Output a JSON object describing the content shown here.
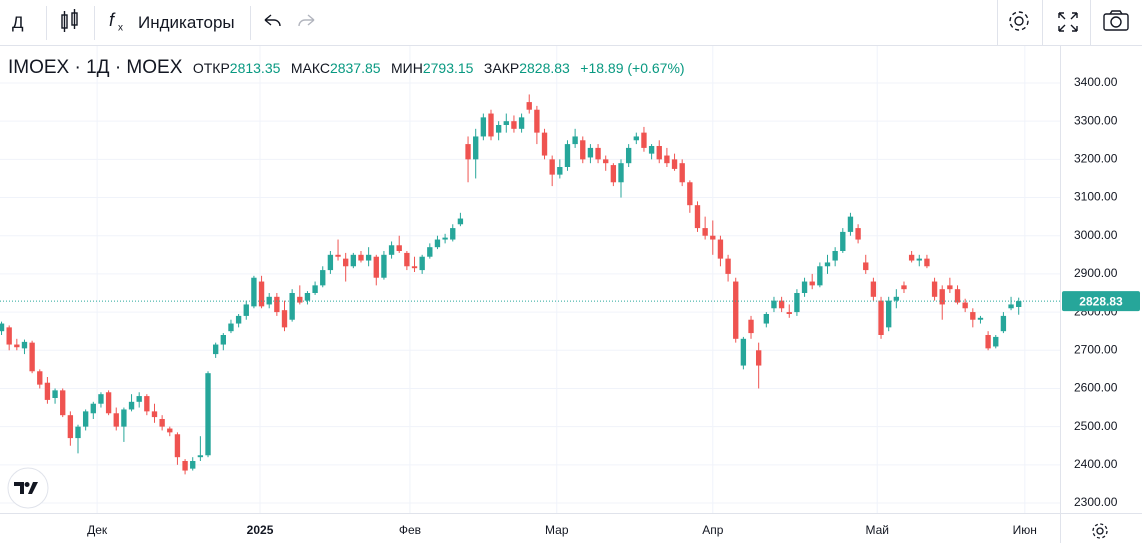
{
  "toolbar": {
    "interval": "Д",
    "indicators": "Индикаторы"
  },
  "chart_data": {
    "type": "candlestick",
    "title": "IMOEX · 1Д · MOEX",
    "ohlc_labels": {
      "open": "ОТКР",
      "high": "МАКС",
      "low": "МИН",
      "close": "ЗАКР"
    },
    "change_label": "+18.89 (+0.67%)",
    "up_color": "#26a69a",
    "down_color": "#ef5350",
    "grid": true,
    "ylim": [
      2273.8,
      3496.9
    ],
    "yticks": [
      {
        "value": 2300,
        "label": "2300.00"
      },
      {
        "value": 2400,
        "label": "2400.00"
      },
      {
        "value": 2500,
        "label": "2500.00"
      },
      {
        "value": 2600,
        "label": "2600.00"
      },
      {
        "value": 2700,
        "label": "2700.00"
      },
      {
        "value": 2800,
        "label": "2800.00"
      },
      {
        "value": 2900,
        "label": "2900.00"
      },
      {
        "value": 3000,
        "label": "3000.00"
      },
      {
        "value": 3100,
        "label": "3100.00"
      },
      {
        "value": 3200,
        "label": "3200.00"
      },
      {
        "value": 3300,
        "label": "3300.00"
      },
      {
        "value": 3400,
        "label": "3400.00"
      }
    ],
    "xlim": [
      -0.2,
      138.4
    ],
    "xticks": [
      {
        "value": 12.5,
        "label": "Дек"
      },
      {
        "value": 33.8,
        "label": "2025"
      },
      {
        "value": 53.4,
        "label": "Фев"
      },
      {
        "value": 72.6,
        "label": "Мар"
      },
      {
        "value": 93.0,
        "label": "Апр"
      },
      {
        "value": 114.5,
        "label": "Май"
      },
      {
        "value": 133.8,
        "label": "Июн"
      }
    ],
    "candles": [
      {
        "open": 2750,
        "high": 2775,
        "low": 2740,
        "close": 2770
      },
      {
        "open": 2760,
        "high": 2765,
        "low": 2700,
        "close": 2715
      },
      {
        "open": 2715,
        "high": 2730,
        "low": 2700,
        "close": 2708
      },
      {
        "open": 2705,
        "high": 2728,
        "low": 2690,
        "close": 2722
      },
      {
        "open": 2720,
        "high": 2725,
        "low": 2640,
        "close": 2645
      },
      {
        "open": 2645,
        "high": 2650,
        "low": 2600,
        "close": 2610
      },
      {
        "open": 2615,
        "high": 2630,
        "low": 2560,
        "close": 2570
      },
      {
        "open": 2575,
        "high": 2600,
        "low": 2560,
        "close": 2595
      },
      {
        "open": 2595,
        "high": 2600,
        "low": 2525,
        "close": 2530
      },
      {
        "open": 2530,
        "high": 2540,
        "low": 2450,
        "close": 2470
      },
      {
        "open": 2470,
        "high": 2505,
        "low": 2430,
        "close": 2500
      },
      {
        "open": 2500,
        "high": 2545,
        "low": 2490,
        "close": 2540
      },
      {
        "open": 2535,
        "high": 2565,
        "low": 2520,
        "close": 2560
      },
      {
        "open": 2560,
        "high": 2590,
        "low": 2550,
        "close": 2585
      },
      {
        "open": 2590,
        "high": 2595,
        "low": 2530,
        "close": 2535
      },
      {
        "open": 2535,
        "high": 2550,
        "low": 2490,
        "close": 2500
      },
      {
        "open": 2500,
        "high": 2550,
        "low": 2460,
        "close": 2545
      },
      {
        "open": 2545,
        "high": 2585,
        "low": 2540,
        "close": 2565
      },
      {
        "open": 2565,
        "high": 2590,
        "low": 2550,
        "close": 2580
      },
      {
        "open": 2580,
        "high": 2585,
        "low": 2530,
        "close": 2540
      },
      {
        "open": 2540,
        "high": 2560,
        "low": 2510,
        "close": 2525
      },
      {
        "open": 2520,
        "high": 2530,
        "low": 2490,
        "close": 2500
      },
      {
        "open": 2495,
        "high": 2500,
        "low": 2475,
        "close": 2485
      },
      {
        "open": 2480,
        "high": 2485,
        "low": 2400,
        "close": 2420
      },
      {
        "open": 2410,
        "high": 2415,
        "low": 2375,
        "close": 2385
      },
      {
        "open": 2390,
        "high": 2420,
        "low": 2385,
        "close": 2410
      },
      {
        "open": 2420,
        "high": 2475,
        "low": 2410,
        "close": 2425
      },
      {
        "open": 2425,
        "high": 2645,
        "low": 2420,
        "close": 2640
      },
      {
        "open": 2690,
        "high": 2720,
        "low": 2680,
        "close": 2715
      },
      {
        "open": 2715,
        "high": 2745,
        "low": 2700,
        "close": 2740
      },
      {
        "open": 2750,
        "high": 2780,
        "low": 2745,
        "close": 2770
      },
      {
        "open": 2770,
        "high": 2795,
        "low": 2760,
        "close": 2790
      },
      {
        "open": 2790,
        "high": 2830,
        "low": 2780,
        "close": 2820
      },
      {
        "open": 2815,
        "high": 2895,
        "low": 2810,
        "close": 2890
      },
      {
        "open": 2880,
        "high": 2895,
        "low": 2810,
        "close": 2815
      },
      {
        "open": 2820,
        "high": 2850,
        "low": 2810,
        "close": 2840
      },
      {
        "open": 2840,
        "high": 2850,
        "low": 2790,
        "close": 2800
      },
      {
        "open": 2805,
        "high": 2830,
        "low": 2750,
        "close": 2760
      },
      {
        "open": 2780,
        "high": 2860,
        "low": 2775,
        "close": 2850
      },
      {
        "open": 2840,
        "high": 2870,
        "low": 2820,
        "close": 2825
      },
      {
        "open": 2830,
        "high": 2855,
        "low": 2820,
        "close": 2850
      },
      {
        "open": 2850,
        "high": 2880,
        "low": 2845,
        "close": 2870
      },
      {
        "open": 2870,
        "high": 2920,
        "low": 2865,
        "close": 2910
      },
      {
        "open": 2910,
        "high": 2960,
        "low": 2900,
        "close": 2950
      },
      {
        "open": 2950,
        "high": 2990,
        "low": 2935,
        "close": 2945
      },
      {
        "open": 2940,
        "high": 2955,
        "low": 2880,
        "close": 2920
      },
      {
        "open": 2920,
        "high": 2955,
        "low": 2915,
        "close": 2950
      },
      {
        "open": 2950,
        "high": 2960,
        "low": 2930,
        "close": 2935
      },
      {
        "open": 2935,
        "high": 2970,
        "low": 2920,
        "close": 2950
      },
      {
        "open": 2945,
        "high": 2950,
        "low": 2870,
        "close": 2890
      },
      {
        "open": 2890,
        "high": 2960,
        "low": 2885,
        "close": 2950
      },
      {
        "open": 2950,
        "high": 2985,
        "low": 2940,
        "close": 2975
      },
      {
        "open": 2975,
        "high": 3000,
        "low": 2955,
        "close": 2960
      },
      {
        "open": 2955,
        "high": 2960,
        "low": 2910,
        "close": 2920
      },
      {
        "open": 2920,
        "high": 2945,
        "low": 2905,
        "close": 2915
      },
      {
        "open": 2910,
        "high": 2950,
        "low": 2900,
        "close": 2945
      },
      {
        "open": 2945,
        "high": 2980,
        "low": 2940,
        "close": 2970
      },
      {
        "open": 2970,
        "high": 3000,
        "low": 2965,
        "close": 2990
      },
      {
        "open": 2990,
        "high": 3005,
        "low": 2980,
        "close": 2995
      },
      {
        "open": 2990,
        "high": 3030,
        "low": 2985,
        "close": 3020
      },
      {
        "open": 3030,
        "high": 3060,
        "low": 3025,
        "close": 3045
      },
      {
        "open": 3240,
        "high": 3260,
        "low": 3140,
        "close": 3200
      },
      {
        "open": 3200,
        "high": 3280,
        "low": 3150,
        "close": 3260
      },
      {
        "open": 3260,
        "high": 3320,
        "low": 3250,
        "close": 3310
      },
      {
        "open": 3320,
        "high": 3330,
        "low": 3250,
        "close": 3260
      },
      {
        "open": 3270,
        "high": 3300,
        "low": 3250,
        "close": 3290
      },
      {
        "open": 3290,
        "high": 3320,
        "low": 3270,
        "close": 3300
      },
      {
        "open": 3300,
        "high": 3315,
        "low": 3270,
        "close": 3280
      },
      {
        "open": 3280,
        "high": 3320,
        "low": 3270,
        "close": 3310
      },
      {
        "open": 3350,
        "high": 3370,
        "low": 3320,
        "close": 3330
      },
      {
        "open": 3330,
        "high": 3340,
        "low": 3240,
        "close": 3270
      },
      {
        "open": 3270,
        "high": 3280,
        "low": 3200,
        "close": 3210
      },
      {
        "open": 3200,
        "high": 3210,
        "low": 3130,
        "close": 3160
      },
      {
        "open": 3160,
        "high": 3200,
        "low": 3150,
        "close": 3180
      },
      {
        "open": 3180,
        "high": 3250,
        "low": 3170,
        "close": 3240
      },
      {
        "open": 3240,
        "high": 3280,
        "low": 3230,
        "close": 3260
      },
      {
        "open": 3250,
        "high": 3260,
        "low": 3190,
        "close": 3200
      },
      {
        "open": 3205,
        "high": 3240,
        "low": 3190,
        "close": 3230
      },
      {
        "open": 3230,
        "high": 3240,
        "low": 3190,
        "close": 3200
      },
      {
        "open": 3200,
        "high": 3210,
        "low": 3170,
        "close": 3190
      },
      {
        "open": 3185,
        "high": 3190,
        "low": 3130,
        "close": 3140
      },
      {
        "open": 3140,
        "high": 3200,
        "low": 3100,
        "close": 3190
      },
      {
        "open": 3190,
        "high": 3240,
        "low": 3180,
        "close": 3230
      },
      {
        "open": 3250,
        "high": 3270,
        "low": 3240,
        "close": 3260
      },
      {
        "open": 3270,
        "high": 3285,
        "low": 3220,
        "close": 3230
      },
      {
        "open": 3215,
        "high": 3240,
        "low": 3200,
        "close": 3235
      },
      {
        "open": 3235,
        "high": 3250,
        "low": 3190,
        "close": 3200
      },
      {
        "open": 3210,
        "high": 3230,
        "low": 3180,
        "close": 3190
      },
      {
        "open": 3200,
        "high": 3215,
        "low": 3170,
        "close": 3175
      },
      {
        "open": 3190,
        "high": 3200,
        "low": 3130,
        "close": 3140
      },
      {
        "open": 3140,
        "high": 3145,
        "low": 3060,
        "close": 3080
      },
      {
        "open": 3080,
        "high": 3090,
        "low": 3010,
        "close": 3020
      },
      {
        "open": 3020,
        "high": 3050,
        "low": 2990,
        "close": 3000
      },
      {
        "open": 3000,
        "high": 3040,
        "low": 2950,
        "close": 2990
      },
      {
        "open": 2990,
        "high": 3000,
        "low": 2920,
        "close": 2940
      },
      {
        "open": 2940,
        "high": 2950,
        "low": 2880,
        "close": 2900
      },
      {
        "open": 2880,
        "high": 2890,
        "low": 2720,
        "close": 2730
      },
      {
        "open": 2660,
        "high": 2735,
        "low": 2650,
        "close": 2730
      },
      {
        "open": 2780,
        "high": 2790,
        "low": 2730,
        "close": 2745
      },
      {
        "open": 2700,
        "high": 2720,
        "low": 2600,
        "close": 2660
      },
      {
        "open": 2770,
        "high": 2800,
        "low": 2760,
        "close": 2795
      },
      {
        "open": 2810,
        "high": 2840,
        "low": 2800,
        "close": 2830
      },
      {
        "open": 2830,
        "high": 2840,
        "low": 2800,
        "close": 2810
      },
      {
        "open": 2800,
        "high": 2820,
        "low": 2785,
        "close": 2795
      },
      {
        "open": 2800,
        "high": 2860,
        "low": 2790,
        "close": 2850
      },
      {
        "open": 2850,
        "high": 2890,
        "low": 2840,
        "close": 2880
      },
      {
        "open": 2880,
        "high": 2900,
        "low": 2860,
        "close": 2870
      },
      {
        "open": 2870,
        "high": 2930,
        "low": 2865,
        "close": 2920
      },
      {
        "open": 2920,
        "high": 2950,
        "low": 2900,
        "close": 2930
      },
      {
        "open": 2935,
        "high": 2970,
        "low": 2920,
        "close": 2960
      },
      {
        "open": 2960,
        "high": 3020,
        "low": 2955,
        "close": 3010
      },
      {
        "open": 3010,
        "high": 3060,
        "low": 3000,
        "close": 3050
      },
      {
        "open": 3020,
        "high": 3030,
        "low": 2980,
        "close": 2990
      },
      {
        "open": 2930,
        "high": 2950,
        "low": 2900,
        "close": 2910
      },
      {
        "open": 2880,
        "high": 2890,
        "low": 2830,
        "close": 2840
      },
      {
        "open": 2830,
        "high": 2840,
        "low": 2730,
        "close": 2740
      },
      {
        "open": 2760,
        "high": 2840,
        "low": 2750,
        "close": 2830
      },
      {
        "open": 2830,
        "high": 2860,
        "low": 2810,
        "close": 2840
      },
      {
        "open": 2870,
        "high": 2880,
        "low": 2850,
        "close": 2860
      },
      {
        "open": 2950,
        "high": 2960,
        "low": 2930,
        "close": 2935
      },
      {
        "open": 2935,
        "high": 2950,
        "low": 2920,
        "close": 2940
      },
      {
        "open": 2940,
        "high": 2950,
        "low": 2915,
        "close": 2920
      },
      {
        "open": 2880,
        "high": 2890,
        "low": 2830,
        "close": 2840
      },
      {
        "open": 2860,
        "high": 2870,
        "low": 2780,
        "close": 2820
      },
      {
        "open": 2870,
        "high": 2890,
        "low": 2850,
        "close": 2860
      },
      {
        "open": 2860,
        "high": 2870,
        "low": 2820,
        "close": 2825
      },
      {
        "open": 2825,
        "high": 2835,
        "low": 2800,
        "close": 2810
      },
      {
        "open": 2800,
        "high": 2810,
        "low": 2760,
        "close": 2780
      },
      {
        "open": 2780,
        "high": 2790,
        "low": 2770,
        "close": 2785
      },
      {
        "open": 2740,
        "high": 2750,
        "low": 2700,
        "close": 2705
      },
      {
        "open": 2710,
        "high": 2740,
        "low": 2705,
        "close": 2735
      },
      {
        "open": 2750,
        "high": 2800,
        "low": 2745,
        "close": 2790
      },
      {
        "open": 2810,
        "high": 2840,
        "low": 2805,
        "close": 2820
      },
      {
        "open": 2813.35,
        "high": 2837.85,
        "low": 2793.15,
        "close": 2828.83
      }
    ]
  }
}
